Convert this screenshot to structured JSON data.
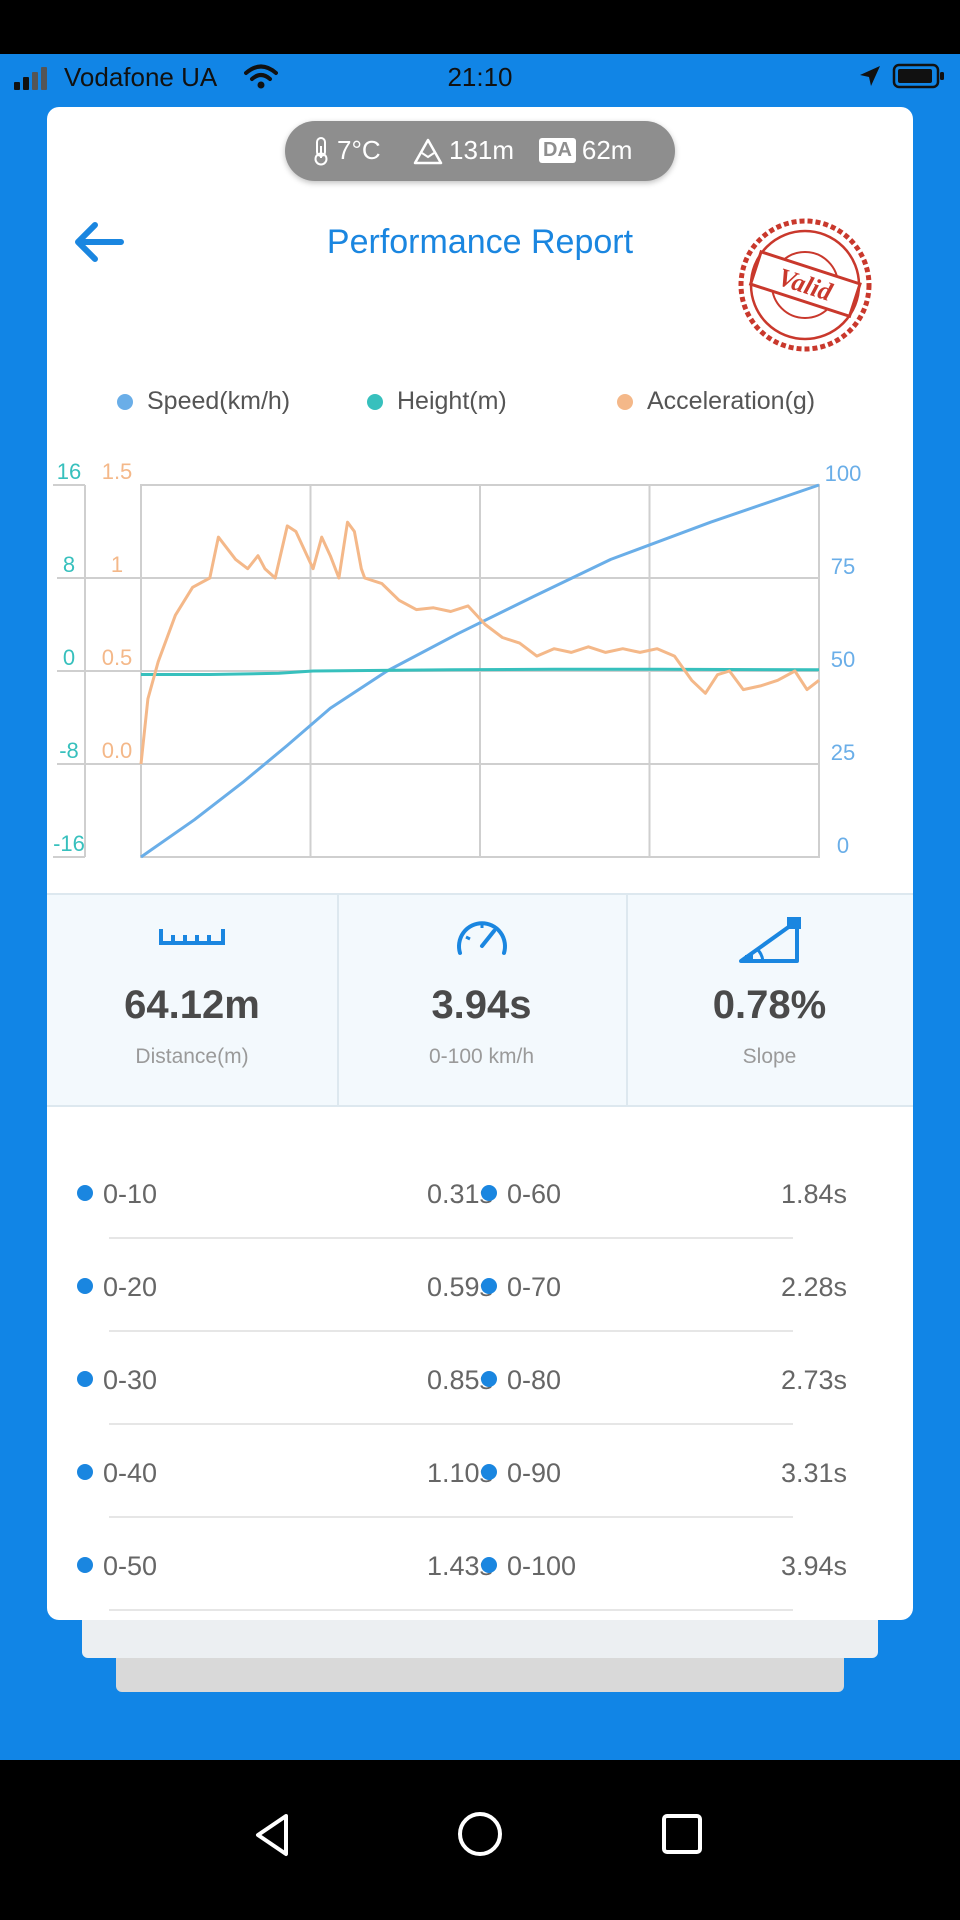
{
  "status_bar": {
    "carrier": "Vodafone UA",
    "time": "21:10"
  },
  "weather": {
    "temperature": "7°C",
    "altitude": "131m",
    "da_label": "DA",
    "density_altitude": "62m"
  },
  "header": {
    "title": "Performance Report",
    "stamp_text": "Valid"
  },
  "legend": [
    {
      "label": "Speed(km/h)",
      "color": "#6aaee8"
    },
    {
      "label": "Height(m)",
      "color": "#37c0bd"
    },
    {
      "label": "Acceleration(g)",
      "color": "#f4b889"
    }
  ],
  "chart_data": {
    "type": "line",
    "x_range": [
      0,
      3.94
    ],
    "axes": {
      "height": {
        "ticks": [
          "16",
          "8",
          "0",
          "-8",
          "-16"
        ],
        "range": [
          -16,
          16
        ],
        "color": "#37c0bd"
      },
      "acceleration": {
        "ticks": [
          "1.5",
          "1",
          "0.5",
          "0.0"
        ],
        "range": [
          0,
          1.5
        ],
        "color": "#f4b889"
      },
      "speed": {
        "ticks": [
          "100",
          "75",
          "50",
          "25",
          "0"
        ],
        "range": [
          0,
          100
        ],
        "color": "#6aaee8"
      }
    },
    "grid": true,
    "series": [
      {
        "name": "Speed(km/h)",
        "axis": "speed",
        "color": "#6aaee8",
        "points": [
          [
            0,
            0
          ],
          [
            0.31,
            10
          ],
          [
            0.59,
            20
          ],
          [
            0.85,
            30
          ],
          [
            1.1,
            40
          ],
          [
            1.43,
            50
          ],
          [
            1.84,
            60
          ],
          [
            2.28,
            70
          ],
          [
            2.73,
            80
          ],
          [
            3.31,
            90
          ],
          [
            3.94,
            100
          ]
        ]
      },
      {
        "name": "Height(m)",
        "axis": "height",
        "color": "#37c0bd",
        "points": [
          [
            0,
            -0.3
          ],
          [
            0.4,
            -0.3
          ],
          [
            0.8,
            -0.2
          ],
          [
            1.0,
            0
          ],
          [
            1.4,
            0.05
          ],
          [
            1.8,
            0.1
          ],
          [
            2.4,
            0.15
          ],
          [
            3.0,
            0.15
          ],
          [
            3.94,
            0.1
          ]
        ]
      },
      {
        "name": "Acceleration(g)",
        "axis": "acceleration",
        "color": "#f4b889",
        "points": [
          [
            0,
            0
          ],
          [
            0.04,
            0.35
          ],
          [
            0.1,
            0.55
          ],
          [
            0.2,
            0.8
          ],
          [
            0.3,
            0.95
          ],
          [
            0.4,
            1.0
          ],
          [
            0.45,
            1.22
          ],
          [
            0.55,
            1.1
          ],
          [
            0.62,
            1.05
          ],
          [
            0.68,
            1.12
          ],
          [
            0.72,
            1.05
          ],
          [
            0.78,
            1.0
          ],
          [
            0.85,
            1.28
          ],
          [
            0.9,
            1.25
          ],
          [
            0.95,
            1.15
          ],
          [
            1.0,
            1.05
          ],
          [
            1.05,
            1.22
          ],
          [
            1.1,
            1.12
          ],
          [
            1.15,
            1.0
          ],
          [
            1.2,
            1.3
          ],
          [
            1.24,
            1.25
          ],
          [
            1.28,
            1.05
          ],
          [
            1.3,
            1.0
          ],
          [
            1.4,
            0.97
          ],
          [
            1.5,
            0.88
          ],
          [
            1.6,
            0.83
          ],
          [
            1.7,
            0.84
          ],
          [
            1.8,
            0.82
          ],
          [
            1.9,
            0.85
          ],
          [
            2.0,
            0.75
          ],
          [
            2.1,
            0.68
          ],
          [
            2.2,
            0.65
          ],
          [
            2.3,
            0.58
          ],
          [
            2.4,
            0.62
          ],
          [
            2.5,
            0.6
          ],
          [
            2.6,
            0.63
          ],
          [
            2.7,
            0.6
          ],
          [
            2.8,
            0.62
          ],
          [
            2.9,
            0.6
          ],
          [
            3.0,
            0.62
          ],
          [
            3.1,
            0.58
          ],
          [
            3.2,
            0.45
          ],
          [
            3.28,
            0.38
          ],
          [
            3.35,
            0.48
          ],
          [
            3.42,
            0.5
          ],
          [
            3.5,
            0.4
          ],
          [
            3.6,
            0.42
          ],
          [
            3.7,
            0.45
          ],
          [
            3.8,
            0.5
          ],
          [
            3.87,
            0.4
          ],
          [
            3.94,
            0.45
          ]
        ]
      }
    ]
  },
  "stats": [
    {
      "value": "64.12m",
      "label": "Distance(m)",
      "icon": "ruler-icon"
    },
    {
      "value": "3.94s",
      "label": "0-100 km/h",
      "icon": "speedometer-icon"
    },
    {
      "value": "0.78%",
      "label": "Slope",
      "icon": "slope-icon"
    }
  ],
  "splits": [
    {
      "left_range": "0-10",
      "left_time": "0.31s",
      "right_range": "0-60",
      "right_time": "1.84s"
    },
    {
      "left_range": "0-20",
      "left_time": "0.59s",
      "right_range": "0-70",
      "right_time": "2.28s"
    },
    {
      "left_range": "0-30",
      "left_time": "0.85s",
      "right_range": "0-80",
      "right_time": "2.73s"
    },
    {
      "left_range": "0-40",
      "left_time": "1.10s",
      "right_range": "0-90",
      "right_time": "3.31s"
    },
    {
      "left_range": "0-50",
      "left_time": "1.43s",
      "right_range": "0-100",
      "right_time": "3.94s"
    }
  ]
}
